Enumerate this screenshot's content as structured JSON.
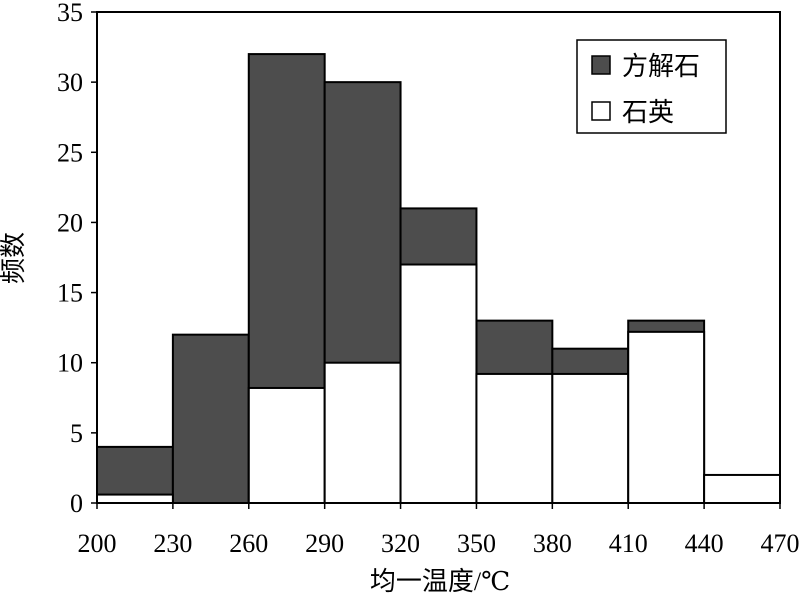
{
  "chart_data": {
    "type": "bar",
    "stacking": "overlay",
    "bin_edges": [
      200,
      230,
      260,
      290,
      320,
      350,
      380,
      410,
      440,
      470
    ],
    "xlabel": "均一温度/℃",
    "ylabel": "频数",
    "xlim": [
      200,
      470
    ],
    "ylim": [
      0,
      35
    ],
    "xticks": [
      "200",
      "230",
      "260",
      "290",
      "320",
      "350",
      "380",
      "410",
      "440",
      "470"
    ],
    "yticks": [
      "0",
      "5",
      "10",
      "15",
      "20",
      "25",
      "30",
      "35"
    ],
    "grid": false,
    "legend_position": "top-right",
    "series": [
      {
        "name": "方解石",
        "color": "#4d4d4d",
        "values": [
          4,
          12,
          32,
          30,
          21,
          13,
          11,
          13,
          0
        ]
      },
      {
        "name": "石英",
        "color": "#ffffff",
        "values": [
          0.6,
          0,
          8.2,
          10,
          17,
          9.2,
          9.2,
          12.2,
          2
        ]
      }
    ]
  }
}
